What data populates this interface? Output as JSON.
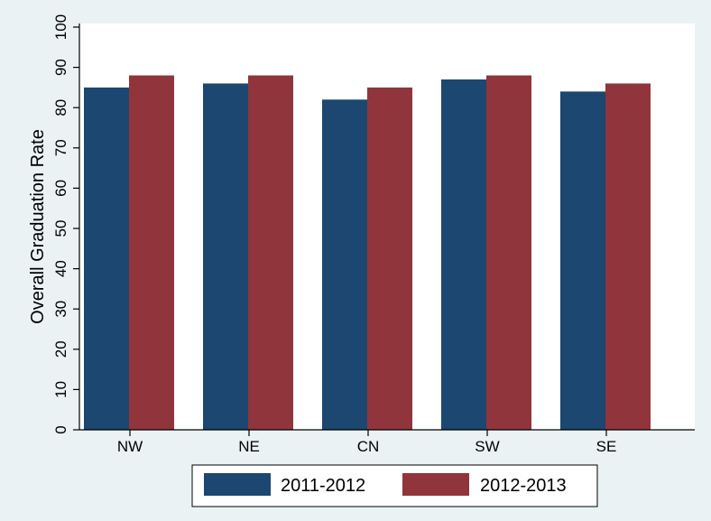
{
  "chart_data": {
    "type": "bar",
    "categories": [
      "NW",
      "NE",
      "CN",
      "SW",
      "SE"
    ],
    "series": [
      {
        "name": "2011-2012",
        "values": [
          85,
          86,
          82,
          87,
          84
        ],
        "color": "#1c4770"
      },
      {
        "name": "2012-2013",
        "values": [
          88,
          88,
          85,
          88,
          86
        ],
        "color": "#90353b"
      }
    ],
    "title": "",
    "xlabel": "",
    "ylabel": "Overall Graduation Rate",
    "ylim": [
      0,
      100
    ],
    "yticks": [
      0,
      10,
      20,
      30,
      40,
      50,
      60,
      70,
      80,
      90,
      100
    ],
    "grid": false,
    "legend": {
      "position": "bottom",
      "labels": [
        "2011-2012",
        "2012-2013"
      ]
    }
  },
  "colors": {
    "background": "#eaf2f3",
    "plot_background": "#ffffff"
  }
}
